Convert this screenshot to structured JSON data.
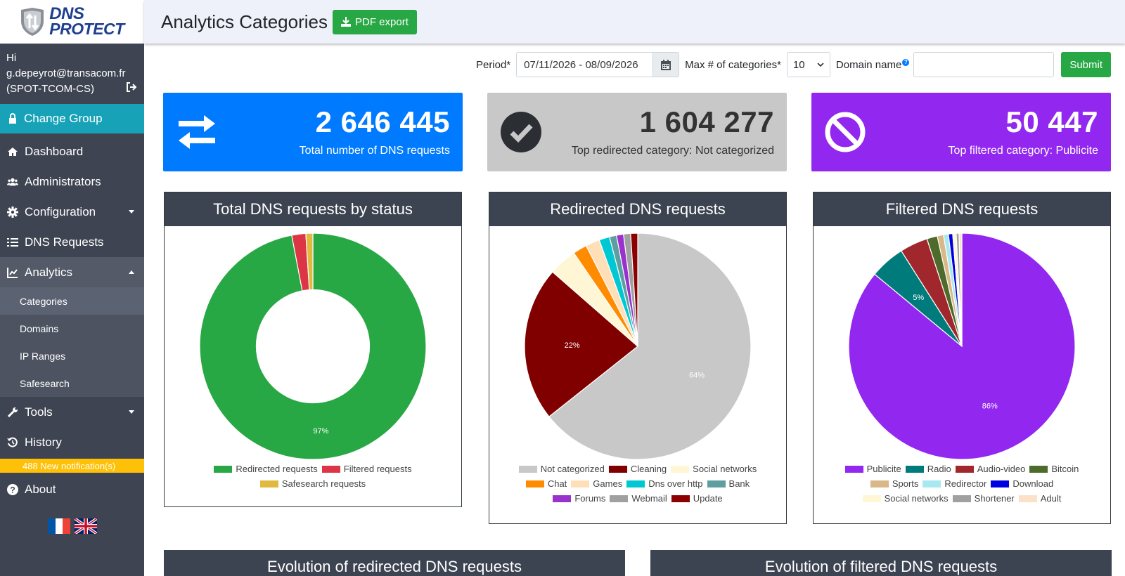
{
  "brand": {
    "line1": "DNS",
    "line2": "PROTECT"
  },
  "user": {
    "greeting": "Hi",
    "email": "g.depeyrot@transacom.fr",
    "group": "(SPOT-TCOM-CS)"
  },
  "sidebar": {
    "change_group": "Change Group",
    "items": [
      {
        "label": "Dashboard"
      },
      {
        "label": "Administrators"
      },
      {
        "label": "Configuration"
      },
      {
        "label": "DNS Requests"
      },
      {
        "label": "Analytics"
      },
      {
        "label": "Tools"
      },
      {
        "label": "History"
      },
      {
        "label": "About"
      }
    ],
    "analytics_sub": [
      "Categories",
      "Domains",
      "IP Ranges",
      "Safesearch"
    ],
    "notification": "488 New notification(s)"
  },
  "header": {
    "title": "Analytics Categories",
    "pdf_label": "PDF export"
  },
  "filters": {
    "period_label": "Period*",
    "period_value": "07/11/2026 - 08/09/2026",
    "max_label": "Max # of categories*",
    "max_value": "10",
    "domain_label": "Domain name",
    "domain_help": "?",
    "domain_value": "",
    "submit_label": "Submit"
  },
  "stats": {
    "total": {
      "value": "2 646 445",
      "label": "Total number of DNS requests",
      "color": "#007bff"
    },
    "redirected": {
      "value": "1 604 277",
      "label": "Top redirected category: Not categorized",
      "color": "#c8c8c8"
    },
    "filtered": {
      "value": "50 447",
      "label": "Top filtered category: Publicite",
      "color": "#9227f0"
    }
  },
  "chart_data": [
    {
      "type": "pie",
      "title": "Total DNS requests by status",
      "donut": true,
      "labels": [
        "Redirected requests",
        "Filtered requests",
        "Safesearch requests"
      ],
      "values": [
        97,
        2,
        1
      ],
      "data_labels": [
        "97%",
        "",
        ""
      ],
      "colors": [
        "#28a745",
        "#dc3545",
        "#e0b93e"
      ]
    },
    {
      "type": "pie",
      "title": "Redirected DNS requests",
      "labels": [
        "Not categorized",
        "Cleaning",
        "Social networks",
        "Chat",
        "Games",
        "Dns over http",
        "Bank",
        "Forums",
        "Webmail",
        "Update"
      ],
      "values": [
        64,
        22,
        4,
        2,
        2,
        1.5,
        1,
        1,
        1,
        1
      ],
      "data_labels": [
        "64%",
        "22%",
        "",
        "",
        "",
        "",
        "",
        "",
        "",
        ""
      ],
      "colors": [
        "#c8c8c8",
        "#800000",
        "#fff6d5",
        "#ff8c00",
        "#ffdfb8",
        "#00c8d2",
        "#5f9ea0",
        "#9932cc",
        "#a0a0a0",
        "#8b0000"
      ]
    },
    {
      "type": "pie",
      "title": "Filtered DNS requests",
      "labels": [
        "Publicite",
        "Radio",
        "Audio-video",
        "Bitcoin",
        "Sports",
        "Redirector",
        "Download",
        "Social networks",
        "Shortener",
        "Adult"
      ],
      "values": [
        86,
        5,
        4,
        1.5,
        0.9,
        0.7,
        0.6,
        0.5,
        0.4,
        0.4
      ],
      "data_labels": [
        "86%",
        "5%",
        "",
        "",
        "",
        "",
        "",
        "",
        "",
        ""
      ],
      "colors": [
        "#9227f0",
        "#007b7b",
        "#a0282d",
        "#4d6b2b",
        "#d8b888",
        "#a8e8f0",
        "#0000e0",
        "#fff6d5",
        "#a0a0a0",
        "#fde0c8"
      ]
    }
  ],
  "bottom_panels": {
    "redirected_evolution": "Evolution of redirected DNS requests",
    "filtered_evolution": "Evolution of filtered DNS requests"
  }
}
